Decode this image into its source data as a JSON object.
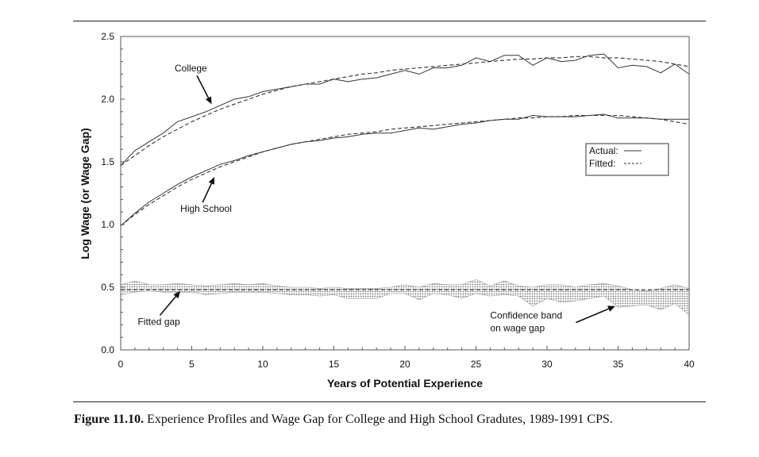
{
  "caption": {
    "label": "Figure 11.10.",
    "text": "Experience Profiles and Wage Gap for College and High School Gradutes, 1989-1991 CPS."
  },
  "chart_data": {
    "type": "line",
    "xlabel": "Years of Potential Experience",
    "ylabel": "Log Wage (or Wage Gap)",
    "xlim": [
      0,
      40
    ],
    "ylim": [
      0,
      2.5
    ],
    "x_ticks": [
      "0",
      "5",
      "10",
      "15",
      "20",
      "25",
      "30",
      "35",
      "40"
    ],
    "y_ticks": [
      "0.0",
      "0.5",
      "1.0",
      "1.5",
      "2.0",
      "2.5"
    ],
    "grid": false,
    "legend": {
      "placement": "right",
      "entries": [
        {
          "label": "Actual:",
          "style": "solid"
        },
        {
          "label": "Fitted:",
          "style": "dashed"
        }
      ]
    },
    "annotations": [
      {
        "text": "College",
        "x": 3.8,
        "y": 2.22,
        "arrow_to": [
          6.4,
          1.96
        ]
      },
      {
        "text": "High School",
        "x": 4.2,
        "y": 1.1,
        "arrow_to": [
          6.6,
          1.38
        ]
      },
      {
        "text": "Fitted gap",
        "x": 1.2,
        "y": 0.2,
        "arrow_to": [
          4.2,
          0.47
        ]
      },
      {
        "text": "Confidence band",
        "x": 26.0,
        "y": 0.25,
        "line2": "on wage gap",
        "arrow_to": [
          34.8,
          0.35
        ]
      }
    ],
    "x": [
      0,
      1,
      2,
      3,
      4,
      5,
      6,
      7,
      8,
      9,
      10,
      11,
      12,
      13,
      14,
      15,
      16,
      17,
      18,
      19,
      20,
      21,
      22,
      23,
      24,
      25,
      26,
      27,
      28,
      29,
      30,
      31,
      32,
      33,
      34,
      35,
      36,
      37,
      38,
      39,
      40
    ],
    "series": [
      {
        "name": "College",
        "style": "actual",
        "values": [
          1.47,
          1.59,
          1.66,
          1.73,
          1.82,
          1.86,
          1.9,
          1.95,
          2.0,
          2.02,
          2.06,
          2.08,
          2.1,
          2.12,
          2.12,
          2.16,
          2.14,
          2.16,
          2.17,
          2.2,
          2.23,
          2.2,
          2.25,
          2.25,
          2.27,
          2.33,
          2.3,
          2.35,
          2.35,
          2.27,
          2.33,
          2.3,
          2.31,
          2.35,
          2.36,
          2.25,
          2.27,
          2.26,
          2.21,
          2.28,
          2.2
        ]
      },
      {
        "name": "College",
        "style": "fitted",
        "values": [
          1.47,
          1.55,
          1.63,
          1.7,
          1.76,
          1.82,
          1.87,
          1.92,
          1.96,
          2.0,
          2.04,
          2.07,
          2.1,
          2.12,
          2.14,
          2.16,
          2.18,
          2.2,
          2.21,
          2.23,
          2.24,
          2.25,
          2.26,
          2.27,
          2.28,
          2.29,
          2.3,
          2.31,
          2.32,
          2.32,
          2.33,
          2.33,
          2.34,
          2.34,
          2.33,
          2.33,
          2.32,
          2.31,
          2.3,
          2.28,
          2.26
        ]
      },
      {
        "name": "High School",
        "style": "actual",
        "values": [
          0.99,
          1.09,
          1.18,
          1.25,
          1.32,
          1.38,
          1.43,
          1.48,
          1.51,
          1.55,
          1.58,
          1.61,
          1.64,
          1.66,
          1.67,
          1.69,
          1.7,
          1.72,
          1.73,
          1.73,
          1.75,
          1.77,
          1.76,
          1.78,
          1.8,
          1.81,
          1.83,
          1.84,
          1.84,
          1.87,
          1.86,
          1.86,
          1.86,
          1.87,
          1.88,
          1.85,
          1.85,
          1.85,
          1.84,
          1.84,
          1.84
        ]
      },
      {
        "name": "High School",
        "style": "fitted",
        "values": [
          0.99,
          1.08,
          1.16,
          1.23,
          1.3,
          1.36,
          1.41,
          1.46,
          1.5,
          1.54,
          1.58,
          1.61,
          1.64,
          1.66,
          1.68,
          1.7,
          1.72,
          1.73,
          1.74,
          1.76,
          1.77,
          1.78,
          1.79,
          1.8,
          1.81,
          1.82,
          1.83,
          1.84,
          1.85,
          1.85,
          1.86,
          1.86,
          1.87,
          1.87,
          1.87,
          1.87,
          1.86,
          1.85,
          1.84,
          1.82,
          1.8
        ]
      },
      {
        "name": "Fitted gap",
        "style": "fitted",
        "values": [
          0.48,
          0.48,
          0.48,
          0.48,
          0.48,
          0.48,
          0.48,
          0.48,
          0.48,
          0.48,
          0.48,
          0.48,
          0.48,
          0.48,
          0.48,
          0.48,
          0.48,
          0.48,
          0.48,
          0.48,
          0.48,
          0.48,
          0.48,
          0.48,
          0.48,
          0.48,
          0.48,
          0.48,
          0.48,
          0.48,
          0.48,
          0.48,
          0.48,
          0.48,
          0.48,
          0.48,
          0.48,
          0.48,
          0.48,
          0.48,
          0.48
        ]
      }
    ],
    "band": {
      "name": "Confidence band",
      "upper": [
        0.52,
        0.55,
        0.52,
        0.52,
        0.53,
        0.52,
        0.51,
        0.52,
        0.53,
        0.52,
        0.53,
        0.51,
        0.5,
        0.5,
        0.49,
        0.5,
        0.49,
        0.49,
        0.49,
        0.5,
        0.52,
        0.5,
        0.53,
        0.52,
        0.52,
        0.56,
        0.51,
        0.55,
        0.51,
        0.5,
        0.52,
        0.52,
        0.5,
        0.52,
        0.53,
        0.51,
        0.48,
        0.47,
        0.49,
        0.52,
        0.49
      ],
      "lower": [
        0.44,
        0.46,
        0.47,
        0.46,
        0.46,
        0.46,
        0.44,
        0.45,
        0.46,
        0.46,
        0.46,
        0.45,
        0.44,
        0.44,
        0.43,
        0.44,
        0.41,
        0.41,
        0.41,
        0.45,
        0.45,
        0.4,
        0.45,
        0.44,
        0.41,
        0.45,
        0.43,
        0.44,
        0.43,
        0.35,
        0.41,
        0.38,
        0.39,
        0.41,
        0.43,
        0.34,
        0.35,
        0.36,
        0.32,
        0.37,
        0.28
      ]
    }
  }
}
